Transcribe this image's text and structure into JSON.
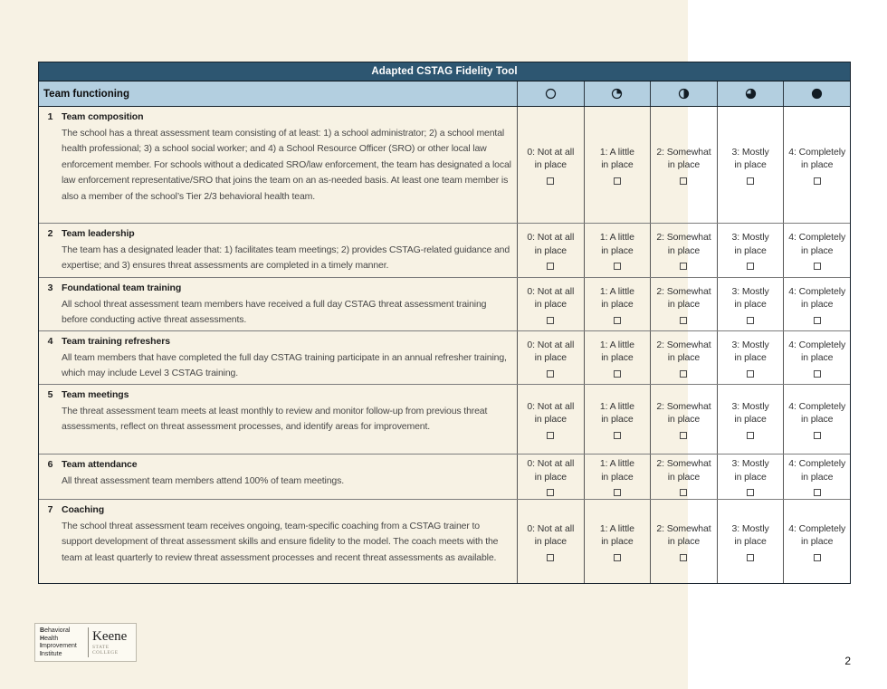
{
  "page": {
    "number": "2"
  },
  "colors": {
    "header_bg": "#2d5671",
    "subheader_bg": "#b3cfe0",
    "page_cream": "#f7f2e4",
    "page_white": "#ffffff",
    "table_border": "#16222c",
    "icon_ink": "#121c24"
  },
  "table": {
    "title": "Adapted CSTAG Fidelity Tool",
    "section": "Team functioning",
    "header_icons": [
      "circle-empty",
      "circle-quarter-filled",
      "circle-half-filled",
      "circle-three-quarter-filled",
      "circle-full"
    ],
    "ratings": [
      {
        "line1": "0: Not at all",
        "line2": "in place"
      },
      {
        "line1": "1: A little",
        "line2": "in place"
      },
      {
        "line1": "2: Somewhat",
        "line2": "in place"
      },
      {
        "line1": "3: Mostly",
        "line2": "in place"
      },
      {
        "line1": "4: Completely",
        "line2": "in place"
      }
    ],
    "rows": [
      {
        "num": "1",
        "title": "Team composition",
        "desc": "The school has a threat assessment team consisting of at least: 1) a school administrator; 2) a school mental health professional; 3) a school social worker; and 4) a School Resource Officer (SRO) or other local law enforcement member. For schools without a dedicated SRO/law enforcement, the team has designated a local law enforcement representative/SRO that joins the team on an as-needed basis. At least one team member is also a member of the school’s Tier 2/3 behavioral health team."
      },
      {
        "num": "2",
        "title": "Team leadership",
        "desc": "The team has a designated leader that: 1) facilitates team meetings; 2) provides CSTAG-related guidance and expertise; and 3) ensures threat assessments are completed in a timely manner."
      },
      {
        "num": "3",
        "title": "Foundational team training",
        "desc": "All school threat assessment team members have received a full day CSTAG threat assessment training before conducting active threat assessments."
      },
      {
        "num": "4",
        "title": "Team training refreshers",
        "desc": "All team members that have completed the full day CSTAG training participate in an annual refresher training, which may include Level 3 CSTAG training."
      },
      {
        "num": "5",
        "title": "Team meetings",
        "desc": "The threat assessment team meets at least monthly to review and monitor follow-up from previous threat assessments, reflect on threat assessment processes, and identify areas for improvement."
      },
      {
        "num": "6",
        "title": "Team attendance",
        "desc": "All threat assessment team members attend 100% of team meetings."
      },
      {
        "num": "7",
        "title": "Coaching",
        "desc": "The school threat assessment team receives ongoing, team-specific coaching from a CSTAG trainer to support development of threat assessment skills and ensure fidelity to the model. The coach meets with the team at least quarterly to review threat assessment processes and recent threat assessments as available."
      }
    ]
  },
  "logo": {
    "institute_lines": [
      {
        "b": "B",
        "rest": "ehavioral"
      },
      {
        "b": "H",
        "rest": "ealth"
      },
      {
        "b": "I",
        "rest": "mprovement"
      },
      {
        "b": "I",
        "rest": "nstitute"
      }
    ],
    "college": "Keene",
    "college_sub": "STATE COLLEGE"
  }
}
